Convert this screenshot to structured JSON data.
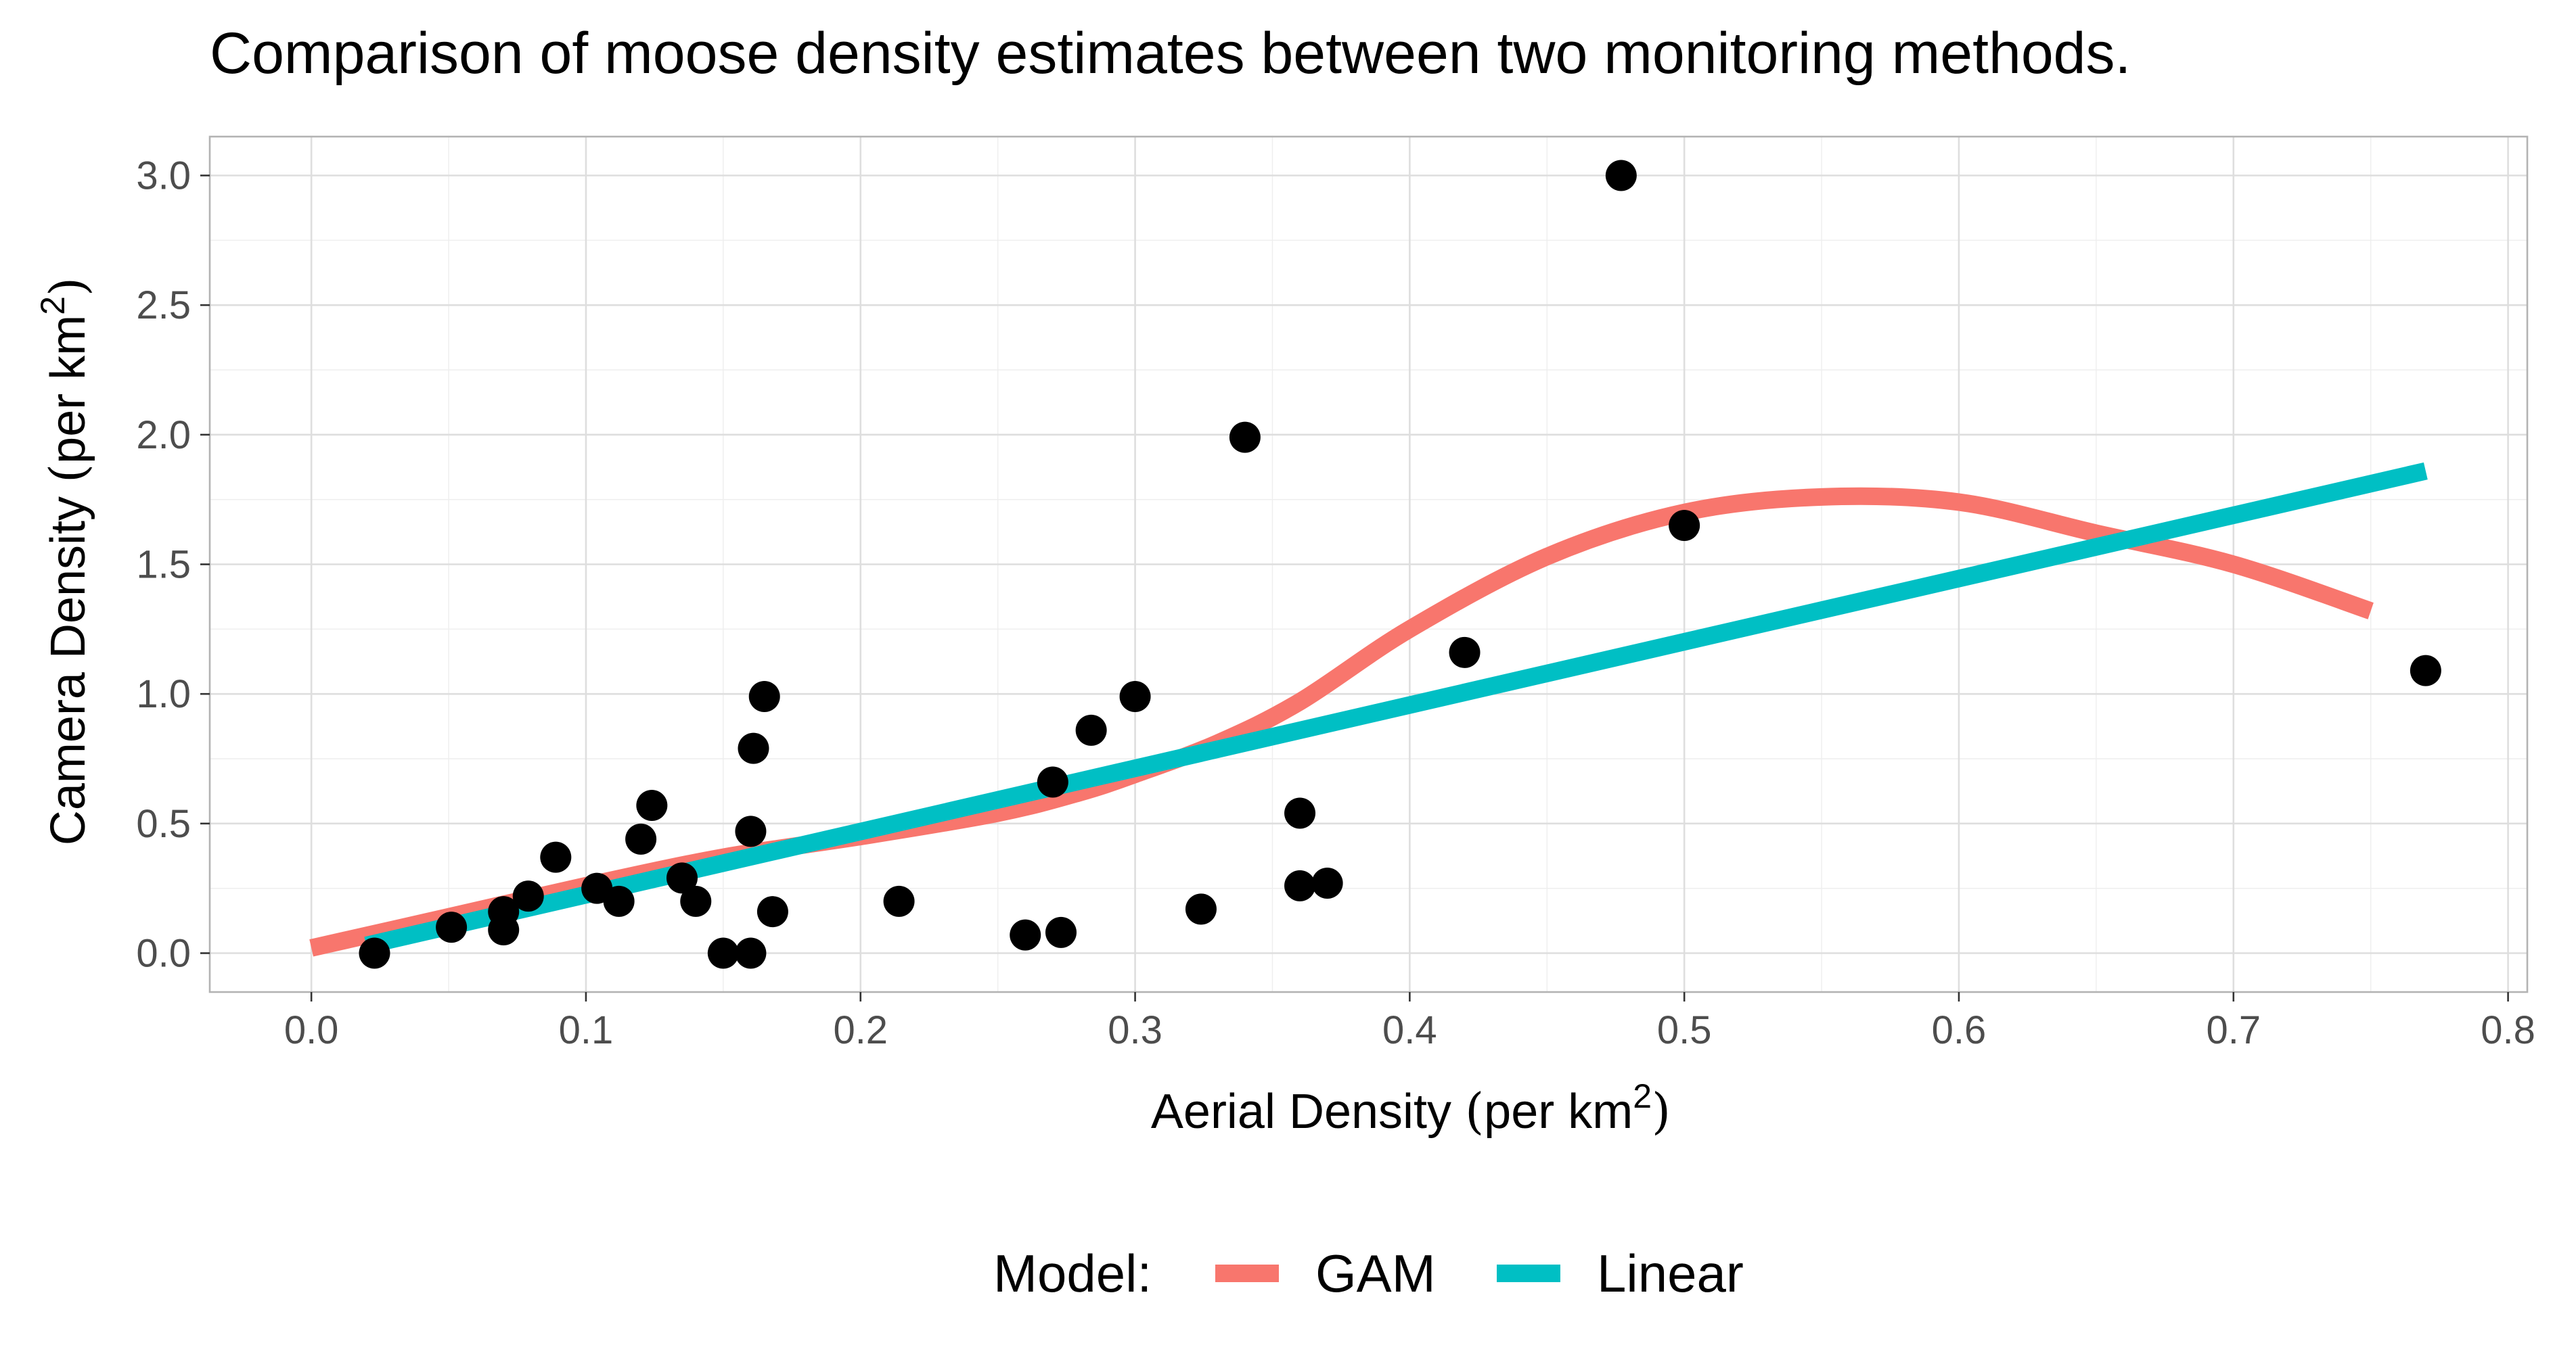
{
  "chart_data": {
    "type": "scatter",
    "title": "Comparison of moose density estimates between two monitoring methods.",
    "xlabel": {
      "prefix": "Aerial Density ",
      "open": "(",
      "text": "per km",
      "sup": "2",
      "close": ")"
    },
    "ylabel": {
      "prefix": "Camera Density ",
      "open": "(",
      "text": "per km",
      "sup": "2",
      "close": ")"
    },
    "xlim": [
      -0.037,
      0.807
    ],
    "ylim": [
      -0.15,
      3.15
    ],
    "x_ticks": [
      0.0,
      0.1,
      0.2,
      0.3,
      0.4,
      0.5,
      0.6,
      0.7,
      0.8
    ],
    "x_tick_labels": [
      "0.0",
      "0.1",
      "0.2",
      "0.3",
      "0.4",
      "0.5",
      "0.6",
      "0.7",
      "0.8"
    ],
    "y_ticks": [
      0.0,
      0.5,
      1.0,
      1.5,
      2.0,
      2.5,
      3.0
    ],
    "y_tick_labels": [
      "0.0",
      "0.5",
      "1.0",
      "1.5",
      "2.0",
      "2.5",
      "3.0"
    ],
    "grid": true,
    "points": [
      [
        0.023,
        0.0
      ],
      [
        0.051,
        0.1
      ],
      [
        0.07,
        0.09
      ],
      [
        0.07,
        0.16
      ],
      [
        0.079,
        0.22
      ],
      [
        0.089,
        0.37
      ],
      [
        0.104,
        0.25
      ],
      [
        0.112,
        0.2
      ],
      [
        0.12,
        0.44
      ],
      [
        0.124,
        0.57
      ],
      [
        0.135,
        0.29
      ],
      [
        0.14,
        0.2
      ],
      [
        0.15,
        0.0
      ],
      [
        0.16,
        0.0
      ],
      [
        0.16,
        0.47
      ],
      [
        0.161,
        0.79
      ],
      [
        0.165,
        0.99
      ],
      [
        0.168,
        0.16
      ],
      [
        0.214,
        0.2
      ],
      [
        0.26,
        0.07
      ],
      [
        0.27,
        0.66
      ],
      [
        0.273,
        0.08
      ],
      [
        0.284,
        0.86
      ],
      [
        0.3,
        0.99
      ],
      [
        0.324,
        0.17
      ],
      [
        0.34,
        1.99
      ],
      [
        0.36,
        0.54
      ],
      [
        0.36,
        0.26
      ],
      [
        0.37,
        0.27
      ],
      [
        0.42,
        1.16
      ],
      [
        0.477,
        3.0
      ],
      [
        0.5,
        1.65
      ],
      [
        0.77,
        1.09
      ]
    ],
    "point_color": "#000000",
    "series": [
      {
        "name": "GAM",
        "color": "#F8766D",
        "x": [
          0.0,
          0.05,
          0.1,
          0.15,
          0.2,
          0.25,
          0.28,
          0.3,
          0.33,
          0.36,
          0.4,
          0.45,
          0.5,
          0.55,
          0.6,
          0.65,
          0.7,
          0.75
        ],
        "y": [
          0.02,
          0.14,
          0.26,
          0.37,
          0.45,
          0.54,
          0.62,
          0.69,
          0.81,
          0.97,
          1.25,
          1.53,
          1.7,
          1.76,
          1.74,
          1.62,
          1.5,
          1.32
        ]
      },
      {
        "name": "Linear",
        "color": "#00BFC4",
        "x": [
          0.02,
          0.77
        ],
        "y": [
          0.03,
          1.86
        ]
      }
    ],
    "legend": {
      "position": "bottom",
      "title": "Model:",
      "items": [
        "GAM",
        "Linear"
      ]
    }
  }
}
